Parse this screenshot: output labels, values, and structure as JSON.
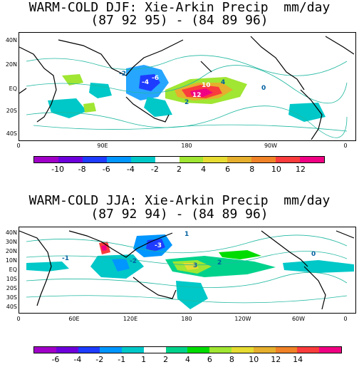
{
  "panel1": {
    "title_line1": "WARM-COLD DJF: Xie-Arkin Precip  mm/day",
    "title_line2": "(87 92 95) - (84 89 96)",
    "y_ticks": [
      "40N",
      "20N",
      "EQ",
      "20S",
      "40S"
    ],
    "x_ticks": [
      "0",
      "90E",
      "180",
      "90W",
      "0"
    ],
    "colorbar": {
      "colors": [
        "#a000c8",
        "#6e00dc",
        "#1e3cff",
        "#0096ff",
        "#00c8c8",
        "#ffffff",
        "#a0e632",
        "#e6dc32",
        "#e6af2d",
        "#f08228",
        "#fa3c3c",
        "#f00082"
      ],
      "labels": [
        "-10",
        "-8",
        "-6",
        "-4",
        "-2",
        "2",
        "4",
        "6",
        "8",
        "10",
        "12"
      ]
    },
    "contour_labels": [
      "2",
      "4",
      "10",
      "12",
      "-4",
      "-6",
      "-2",
      "0"
    ]
  },
  "panel2": {
    "title_line1": "WARM-COLD JJA: Xie-Arkin Precip  mm/day",
    "title_line2": "(87 92 94) - (84 89 96)",
    "y_ticks": [
      "40N",
      "30N",
      "20N",
      "10N",
      "EQ",
      "10S",
      "20S",
      "30S",
      "40S"
    ],
    "x_ticks": [
      "0",
      "60E",
      "120E",
      "180",
      "120W",
      "60W",
      "0"
    ],
    "colorbar": {
      "colors": [
        "#a000c8",
        "#6e00dc",
        "#1e3cff",
        "#0096ff",
        "#00c8c8",
        "#ffffff",
        "#00d28c",
        "#00dc00",
        "#a0e632",
        "#e6dc32",
        "#e6af2d",
        "#f08228",
        "#fa3c3c",
        "#f00082"
      ],
      "labels": [
        "-6",
        "-4",
        "-2",
        "-1",
        "1",
        "2",
        "4",
        "6",
        "8",
        "10",
        "12",
        "14"
      ]
    },
    "contour_labels": [
      "1",
      "2",
      "3",
      "-1",
      "-2",
      "-3",
      "0"
    ]
  }
}
